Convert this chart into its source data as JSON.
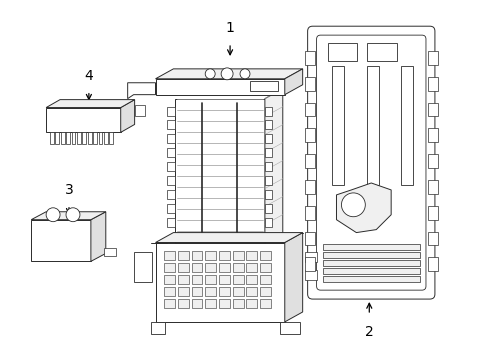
{
  "background_color": "#ffffff",
  "line_color": "#2a2a2a",
  "label_color": "#000000",
  "fig_width": 4.89,
  "fig_height": 3.6,
  "dpi": 100,
  "arrow_color": "#000000",
  "lw": 0.7,
  "hatch_color": "#aaaaaa"
}
